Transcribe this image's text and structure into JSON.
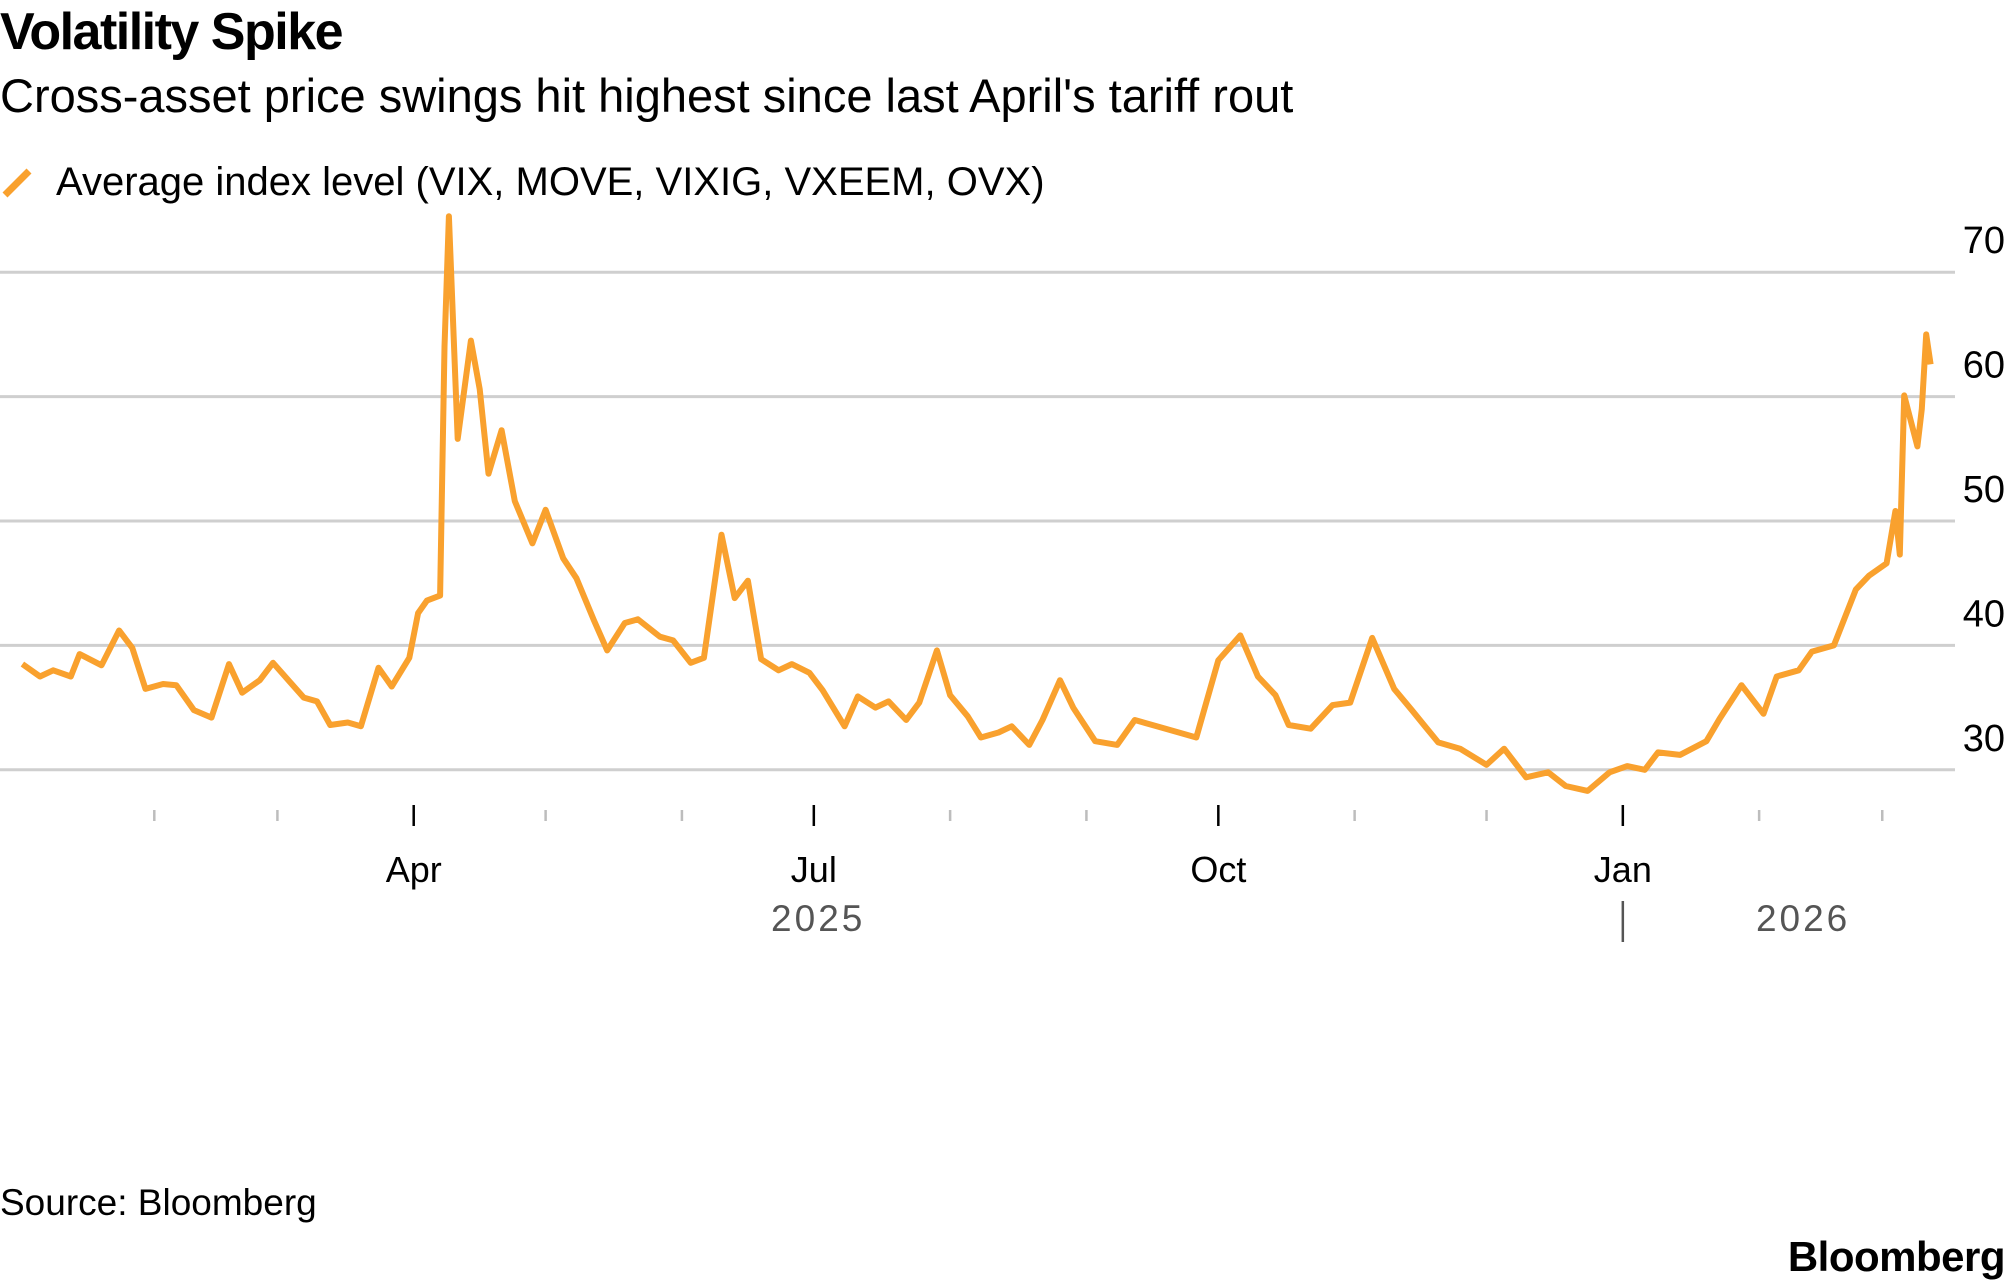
{
  "header": {
    "title": "Volatility Spike",
    "subtitle": "Cross-asset price swings hit highest since last April's tariff rout"
  },
  "legend": {
    "label": "Average index level (VIX, MOVE, VIXIG, VXEEM, OVX)"
  },
  "footer": {
    "source": "Source: Bloomberg",
    "logo": "Bloomberg"
  },
  "colors": {
    "series": "#f9a12e",
    "grid": "#cfcfcf",
    "axis_text": "#000000",
    "year_text": "#555555"
  },
  "chart_data": {
    "type": "line",
    "x_type": "date",
    "xlim": [
      "2025-01-01",
      "2026-03-13"
    ],
    "ylim": [
      25,
      75
    ],
    "y_axis_side": "right",
    "grid": true,
    "yticks": [
      30,
      40,
      50,
      60,
      70
    ],
    "xticks": [
      {
        "date": "2025-04-01",
        "label": "Apr"
      },
      {
        "date": "2025-07-01",
        "label": "Jul"
      },
      {
        "date": "2025-10-01",
        "label": "Oct"
      },
      {
        "date": "2026-01-01",
        "label": "Jan"
      }
    ],
    "minor_ticks": [
      "2025-02-01",
      "2025-03-01",
      "2025-05-01",
      "2025-06-01",
      "2025-08-01",
      "2025-09-01",
      "2025-11-01",
      "2025-12-01",
      "2026-02-01",
      "2026-03-01"
    ],
    "year_labels": [
      {
        "date": "2025-07-02",
        "label": "2025"
      },
      {
        "date": "2026-02-11",
        "label": "2026"
      }
    ],
    "year_divider": "2026-01-01",
    "series": [
      {
        "name": "Average index level (VIX, MOVE, VIXIG, VXEEM, OVX)",
        "color": "#f9a12e",
        "x": [
          "2025-01-02",
          "2025-01-06",
          "2025-01-09",
          "2025-01-13",
          "2025-01-15",
          "2025-01-20",
          "2025-01-24",
          "2025-01-27",
          "2025-01-30",
          "2025-02-03",
          "2025-02-06",
          "2025-02-10",
          "2025-02-14",
          "2025-02-18",
          "2025-02-21",
          "2025-02-25",
          "2025-02-28",
          "2025-03-04",
          "2025-03-07",
          "2025-03-10",
          "2025-03-13",
          "2025-03-17",
          "2025-03-20",
          "2025-03-24",
          "2025-03-27",
          "2025-03-31",
          "2025-04-02",
          "2025-04-04",
          "2025-04-07",
          "2025-04-08",
          "2025-04-09",
          "2025-04-11",
          "2025-04-14",
          "2025-04-16",
          "2025-04-18",
          "2025-04-21",
          "2025-04-24",
          "2025-04-28",
          "2025-05-01",
          "2025-05-05",
          "2025-05-08",
          "2025-05-12",
          "2025-05-15",
          "2025-05-19",
          "2025-05-22",
          "2025-05-27",
          "2025-05-30",
          "2025-06-03",
          "2025-06-06",
          "2025-06-10",
          "2025-06-13",
          "2025-06-16",
          "2025-06-19",
          "2025-06-23",
          "2025-06-26",
          "2025-06-30",
          "2025-07-03",
          "2025-07-08",
          "2025-07-11",
          "2025-07-15",
          "2025-07-18",
          "2025-07-22",
          "2025-07-25",
          "2025-07-29",
          "2025-08-01",
          "2025-08-05",
          "2025-08-08",
          "2025-08-12",
          "2025-08-15",
          "2025-08-19",
          "2025-08-22",
          "2025-08-26",
          "2025-08-29",
          "2025-09-03",
          "2025-09-08",
          "2025-09-12",
          "2025-09-17",
          "2025-09-22",
          "2025-09-26",
          "2025-10-01",
          "2025-10-06",
          "2025-10-10",
          "2025-10-14",
          "2025-10-17",
          "2025-10-22",
          "2025-10-27",
          "2025-10-31",
          "2025-11-05",
          "2025-11-10",
          "2025-11-14",
          "2025-11-17",
          "2025-11-20",
          "2025-11-25",
          "2025-12-01",
          "2025-12-05",
          "2025-12-10",
          "2025-12-15",
          "2025-12-19",
          "2025-12-24",
          "2025-12-29",
          "2026-01-02",
          "2026-01-06",
          "2026-01-09",
          "2026-01-14",
          "2026-01-20",
          "2026-01-23",
          "2026-01-28",
          "2026-02-02",
          "2026-02-05",
          "2026-02-10",
          "2026-02-13",
          "2026-02-18",
          "2026-02-23",
          "2026-02-26",
          "2026-03-02",
          "2026-03-04",
          "2026-03-05",
          "2026-03-06",
          "2026-03-09",
          "2026-03-10",
          "2026-03-11",
          "2026-03-12"
        ],
        "y": [
          38.5,
          37.5,
          38.0,
          37.5,
          39.3,
          38.4,
          41.2,
          39.8,
          36.5,
          36.9,
          36.8,
          34.8,
          34.2,
          38.5,
          36.2,
          37.2,
          38.6,
          37.0,
          35.8,
          35.5,
          33.6,
          33.8,
          33.5,
          38.2,
          36.7,
          39.0,
          42.6,
          43.6,
          44.0,
          64.0,
          74.5,
          56.6,
          64.5,
          60.6,
          53.8,
          57.3,
          51.6,
          48.2,
          50.9,
          47.0,
          45.4,
          42.0,
          39.6,
          41.8,
          42.1,
          40.7,
          40.4,
          38.6,
          39.0,
          48.9,
          43.8,
          45.2,
          38.9,
          38.0,
          38.5,
          37.8,
          36.4,
          33.5,
          35.9,
          35.0,
          35.5,
          34.0,
          35.4,
          39.6,
          36.0,
          34.3,
          32.6,
          33.0,
          33.5,
          32.0,
          34.0,
          37.2,
          35.0,
          32.3,
          32.0,
          34.0,
          33.5,
          33.0,
          32.6,
          38.8,
          40.8,
          37.5,
          36.0,
          33.6,
          33.3,
          35.2,
          35.4,
          40.6,
          36.5,
          34.8,
          33.5,
          32.2,
          31.7,
          30.4,
          31.7,
          29.4,
          29.8,
          28.7,
          28.3,
          29.8,
          30.3,
          30.0,
          31.4,
          31.2,
          32.3,
          34.1,
          36.8,
          34.5,
          37.5,
          38.0,
          39.5,
          40.0,
          44.5,
          45.6,
          46.6,
          50.8,
          47.3,
          60.1,
          56.0,
          59.0,
          65.0,
          62.6
        ]
      }
    ]
  }
}
